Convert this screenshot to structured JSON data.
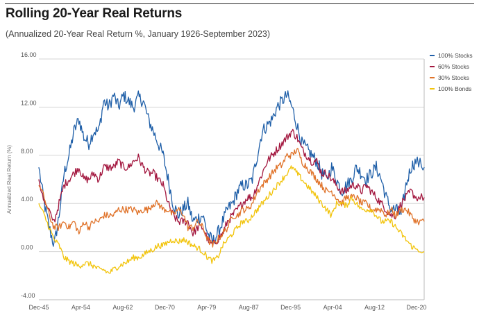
{
  "title": "Rolling 20-Year Real Returns",
  "subtitle": "(Annualized 20-Year Real Return %, January 1926-September 2023)",
  "chart_data": {
    "type": "line",
    "ylabel": "Annualized Real Return (%)",
    "xlabel": "",
    "ylim": [
      -4,
      16
    ],
    "yticks": [
      "16.00",
      "12.00",
      "8.00",
      "4.00",
      "0.00",
      "-4.00"
    ],
    "xtick_labels": [
      "Dec-45",
      "Apr-54",
      "Aug-62",
      "Dec-70",
      "Apr-79",
      "Aug-87",
      "Dec-95",
      "Apr-04",
      "Aug-12",
      "Dec-20"
    ],
    "x_years": [
      1945.92,
      2023.67
    ],
    "grid": true,
    "legend_position": "right",
    "series": [
      {
        "name": "100% Stocks",
        "color": "#1f5fa8",
        "x": [
          1945.9,
          1947.0,
          1948.0,
          1949.0,
          1950.0,
          1951.0,
          1952.0,
          1953.0,
          1954.0,
          1955.0,
          1956.0,
          1957.0,
          1958.0,
          1959.0,
          1960.0,
          1961.0,
          1962.0,
          1963.0,
          1964.0,
          1965.0,
          1966.0,
          1967.0,
          1968.0,
          1969.0,
          1970.0,
          1971.0,
          1972.0,
          1973.0,
          1974.0,
          1975.0,
          1976.0,
          1977.0,
          1978.0,
          1979.0,
          1980.0,
          1981.0,
          1982.0,
          1983.0,
          1984.0,
          1985.0,
          1986.0,
          1987.0,
          1988.0,
          1989.0,
          1990.0,
          1991.0,
          1992.0,
          1993.0,
          1994.0,
          1995.0,
          1996.0,
          1997.0,
          1998.0,
          1999.0,
          2000.0,
          2001.0,
          2002.0,
          2003.0,
          2004.0,
          2005.0,
          2006.0,
          2007.0,
          2008.0,
          2009.0,
          2010.0,
          2011.0,
          2012.0,
          2013.0,
          2014.0,
          2015.0,
          2016.0,
          2017.0,
          2018.0,
          2019.0,
          2020.0,
          2021.0,
          2022.0,
          2023.7
        ],
        "values": [
          7.0,
          4.0,
          2.0,
          0.5,
          3.0,
          6.5,
          8.0,
          10.0,
          11.0,
          9.5,
          9.0,
          10.0,
          10.0,
          12.5,
          12.0,
          13.0,
          12.0,
          13.0,
          12.5,
          12.0,
          12.8,
          12.5,
          11.0,
          10.0,
          9.0,
          8.0,
          6.0,
          4.0,
          3.0,
          3.5,
          4.0,
          2.5,
          2.8,
          3.0,
          1.5,
          0.8,
          1.5,
          2.5,
          3.5,
          4.0,
          5.0,
          5.5,
          5.5,
          6.0,
          8.0,
          10.0,
          10.5,
          11.0,
          12.0,
          12.5,
          13.0,
          12.0,
          10.5,
          9.0,
          8.5,
          8.0,
          7.5,
          6.5,
          6.0,
          7.0,
          6.0,
          5.0,
          5.5,
          6.0,
          7.0,
          6.5,
          6.0,
          6.5,
          7.0,
          6.0,
          4.5,
          3.5,
          3.5,
          3.0,
          5.5,
          7.0,
          7.5,
          7.0
        ]
      },
      {
        "name": "60% Stocks",
        "color": "#a3173f",
        "x": [
          1945.9,
          1947.0,
          1949.0,
          1950.0,
          1951.0,
          1952.0,
          1953.0,
          1954.0,
          1955.0,
          1956.0,
          1957.0,
          1958.0,
          1959.0,
          1960.0,
          1961.0,
          1962.0,
          1963.0,
          1964.0,
          1965.0,
          1966.0,
          1967.0,
          1968.0,
          1969.0,
          1970.0,
          1971.0,
          1972.0,
          1973.0,
          1974.0,
          1975.0,
          1976.0,
          1977.0,
          1978.0,
          1979.0,
          1980.0,
          1981.0,
          1982.0,
          1983.0,
          1984.0,
          1985.0,
          1986.0,
          1987.0,
          1988.0,
          1989.0,
          1990.0,
          1991.0,
          1992.0,
          1993.0,
          1994.0,
          1995.0,
          1996.0,
          1997.0,
          1998.0,
          1999.0,
          2000.0,
          2001.0,
          2002.0,
          2003.0,
          2004.0,
          2005.0,
          2006.0,
          2007.0,
          2008.0,
          2009.0,
          2010.0,
          2011.0,
          2012.0,
          2013.0,
          2014.0,
          2015.0,
          2016.0,
          2017.0,
          2018.0,
          2019.0,
          2020.0,
          2021.0,
          2022.0,
          2023.7
        ],
        "values": [
          6.0,
          4.0,
          2.5,
          4.0,
          5.5,
          6.0,
          6.5,
          7.0,
          6.0,
          6.0,
          6.5,
          6.0,
          7.0,
          7.0,
          7.0,
          7.5,
          7.0,
          7.0,
          7.5,
          7.8,
          7.0,
          6.5,
          6.5,
          6.0,
          5.5,
          4.0,
          3.0,
          2.5,
          2.5,
          2.5,
          1.5,
          2.0,
          2.0,
          1.0,
          0.5,
          1.0,
          1.5,
          2.5,
          3.0,
          3.5,
          4.0,
          4.5,
          4.5,
          5.5,
          6.5,
          7.5,
          8.0,
          8.5,
          9.0,
          9.5,
          10.0,
          9.5,
          8.5,
          8.0,
          7.5,
          7.5,
          6.5,
          6.5,
          6.0,
          5.5,
          5.0,
          5.0,
          5.5,
          5.5,
          5.0,
          5.5,
          5.0,
          4.5,
          4.0,
          3.5,
          3.0,
          3.0,
          4.0,
          4.5,
          5.0,
          4.5,
          4.5
        ]
      },
      {
        "name": "30% Stocks",
        "color": "#e0732a",
        "x": [
          1945.9,
          1947.0,
          1948.0,
          1949.0,
          1950.0,
          1951.0,
          1952.0,
          1953.0,
          1954.0,
          1955.0,
          1956.0,
          1957.0,
          1958.0,
          1959.0,
          1960.0,
          1961.0,
          1962.0,
          1963.0,
          1964.0,
          1965.0,
          1966.0,
          1967.0,
          1968.0,
          1969.0,
          1970.0,
          1971.0,
          1972.0,
          1973.0,
          1974.0,
          1975.0,
          1976.0,
          1977.0,
          1978.0,
          1979.0,
          1980.0,
          1981.0,
          1982.0,
          1983.0,
          1984.0,
          1985.0,
          1986.0,
          1987.0,
          1988.0,
          1989.0,
          1990.0,
          1991.0,
          1992.0,
          1993.0,
          1994.0,
          1995.0,
          1996.0,
          1997.0,
          1998.0,
          1999.0,
          2000.0,
          2001.0,
          2002.0,
          2003.0,
          2004.0,
          2005.0,
          2006.0,
          2007.0,
          2008.0,
          2009.0,
          2010.0,
          2011.0,
          2012.0,
          2013.0,
          2014.0,
          2015.0,
          2016.0,
          2017.0,
          2018.0,
          2019.0,
          2020.0,
          2021.0,
          2022.0,
          2023.7
        ],
        "values": [
          5.5,
          4.5,
          3.0,
          2.0,
          2.0,
          2.5,
          2.0,
          2.5,
          1.5,
          2.5,
          2.0,
          2.5,
          2.5,
          3.0,
          3.0,
          3.0,
          3.5,
          3.5,
          3.5,
          3.5,
          3.2,
          3.5,
          3.5,
          4.0,
          4.0,
          3.5,
          3.5,
          3.0,
          3.5,
          3.2,
          2.0,
          2.0,
          2.5,
          2.0,
          1.0,
          0.5,
          1.0,
          1.5,
          2.0,
          3.0,
          3.0,
          3.5,
          3.5,
          4.0,
          5.0,
          5.5,
          6.0,
          6.5,
          7.0,
          7.2,
          8.0,
          8.0,
          8.5,
          7.5,
          7.0,
          6.5,
          6.0,
          5.5,
          5.0,
          5.0,
          4.5,
          4.0,
          4.5,
          4.5,
          4.5,
          4.0,
          4.0,
          3.5,
          3.5,
          3.5,
          3.0,
          3.5,
          3.0,
          3.5,
          3.5,
          3.0,
          2.5,
          2.5
        ]
      },
      {
        "name": "100% Bonds",
        "color": "#f2c40c",
        "x": [
          1945.9,
          1947.0,
          1948.0,
          1949.0,
          1950.0,
          1951.0,
          1952.0,
          1953.0,
          1954.0,
          1955.0,
          1956.0,
          1957.0,
          1958.0,
          1959.0,
          1960.0,
          1961.0,
          1962.0,
          1963.0,
          1964.0,
          1965.0,
          1966.0,
          1967.0,
          1968.0,
          1969.0,
          1970.0,
          1971.0,
          1972.0,
          1973.0,
          1974.0,
          1975.0,
          1976.0,
          1977.0,
          1978.0,
          1979.0,
          1980.0,
          1981.0,
          1982.0,
          1983.0,
          1984.0,
          1985.0,
          1986.0,
          1987.0,
          1988.0,
          1989.0,
          1990.0,
          1991.0,
          1992.0,
          1993.0,
          1994.0,
          1995.0,
          1996.0,
          1997.0,
          1998.0,
          1999.0,
          2000.0,
          2001.0,
          2002.0,
          2003.0,
          2004.0,
          2005.0,
          2006.0,
          2007.0,
          2008.0,
          2009.0,
          2010.0,
          2011.0,
          2012.0,
          2013.0,
          2014.0,
          2015.0,
          2016.0,
          2017.0,
          2018.0,
          2019.0,
          2020.0,
          2021.0,
          2022.0,
          2023.7
        ],
        "values": [
          4.0,
          3.0,
          2.0,
          1.0,
          0.5,
          -0.5,
          -0.8,
          -1.0,
          -1.2,
          -1.0,
          -1.0,
          -1.2,
          -1.5,
          -1.5,
          -1.8,
          -1.5,
          -1.2,
          -1.0,
          -0.8,
          -0.5,
          -0.5,
          -0.3,
          0.0,
          0.2,
          0.5,
          0.5,
          0.8,
          1.0,
          0.8,
          1.0,
          0.8,
          0.5,
          0.3,
          0.0,
          -0.5,
          -0.8,
          -0.5,
          0.5,
          1.0,
          1.5,
          2.0,
          2.5,
          2.5,
          3.0,
          3.5,
          4.0,
          4.5,
          5.0,
          5.5,
          6.0,
          6.5,
          7.0,
          6.5,
          6.0,
          5.5,
          5.0,
          4.5,
          4.0,
          3.5,
          3.0,
          4.0,
          4.0,
          3.8,
          4.5,
          4.0,
          3.5,
          3.5,
          3.5,
          3.0,
          2.5,
          2.5,
          2.5,
          2.0,
          1.5,
          1.0,
          0.5,
          0.2,
          0.0
        ]
      }
    ]
  }
}
